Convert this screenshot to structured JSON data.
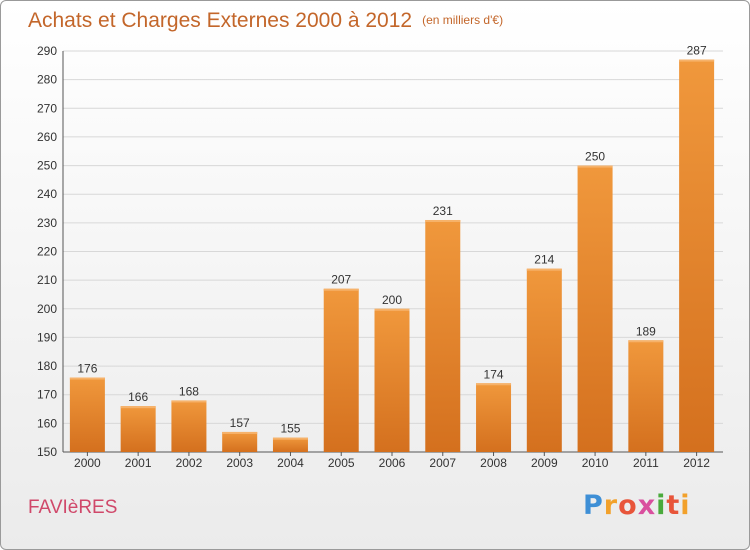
{
  "header": {
    "title": "Achats et Charges Externes 2000 à 2012",
    "unit": "(en milliers d'€)"
  },
  "footer": {
    "commune": "FAVIèRES",
    "logo": [
      "P",
      "r",
      "o",
      "x",
      "i",
      "t",
      "i"
    ],
    "logo_colors": [
      "#3e8fd6",
      "#f2a12b",
      "#e8553a",
      "#d94f9e",
      "#4aaa3c",
      "#e8553a",
      "#f2a12b"
    ]
  },
  "colors": {
    "bar": "#f0983c",
    "bar_dark": "#d4701e",
    "grid": "#d8d8d8",
    "axis_text": "#333333"
  },
  "chart_data": {
    "type": "bar",
    "title": "Achats et Charges Externes 2000 à 2012",
    "subtitle": "(en milliers d'€)",
    "categories": [
      "2000",
      "2001",
      "2002",
      "2003",
      "2004",
      "2005",
      "2006",
      "2007",
      "2008",
      "2009",
      "2010",
      "2011",
      "2012"
    ],
    "values": [
      176,
      166,
      168,
      157,
      155,
      207,
      200,
      231,
      174,
      214,
      250,
      189,
      287
    ],
    "ylim": [
      150,
      290
    ],
    "yticks": [
      150,
      160,
      170,
      180,
      190,
      200,
      210,
      220,
      230,
      240,
      250,
      260,
      270,
      280,
      290
    ],
    "grid": true
  }
}
